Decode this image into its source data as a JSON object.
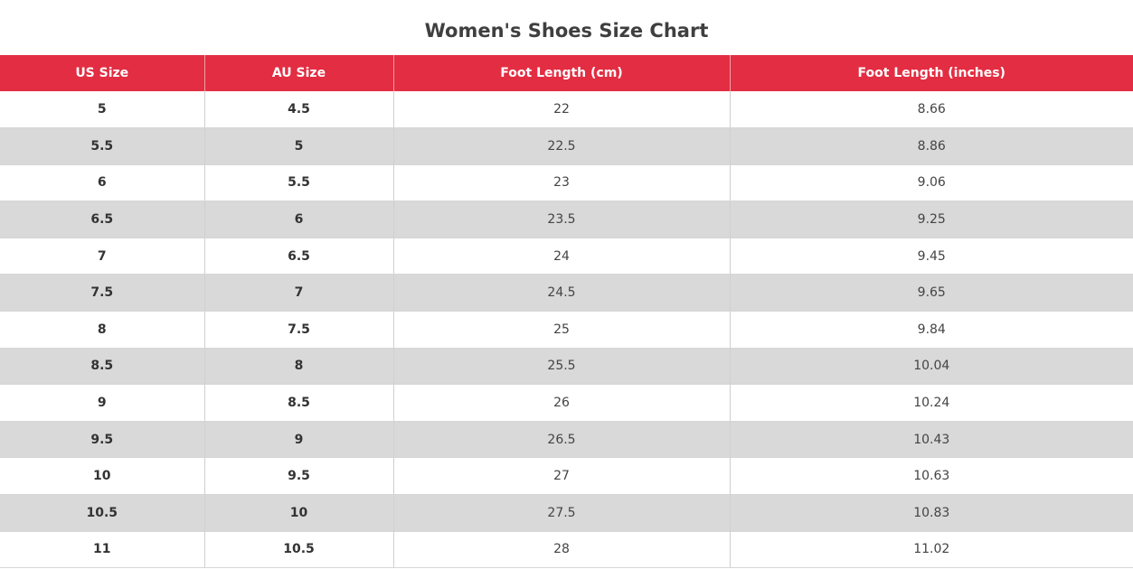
{
  "title": "Women's Shoes Size Chart",
  "table": {
    "header": [
      "US Size",
      "AU Size",
      "Foot Length (cm)",
      "Foot Length (inches)"
    ],
    "rows": [
      [
        "5",
        "4.5",
        "22",
        "8.66"
      ],
      [
        "5.5",
        "5",
        "22.5",
        "8.86"
      ],
      [
        "6",
        "5.5",
        "23",
        "9.06"
      ],
      [
        "6.5",
        "6",
        "23.5",
        "9.25"
      ],
      [
        "7",
        "6.5",
        "24",
        "9.45"
      ],
      [
        "7.5",
        "7",
        "24.5",
        "9.65"
      ],
      [
        "8",
        "7.5",
        "25",
        "9.84"
      ],
      [
        "8.5",
        "8",
        "25.5",
        "10.04"
      ],
      [
        "9",
        "8.5",
        "26",
        "10.24"
      ],
      [
        "9.5",
        "9",
        "26.5",
        "10.43"
      ],
      [
        "10",
        "9.5",
        "27",
        "10.63"
      ],
      [
        "10.5",
        "10",
        "27.5",
        "10.83"
      ],
      [
        "11",
        "10.5",
        "28",
        "11.02"
      ]
    ]
  }
}
